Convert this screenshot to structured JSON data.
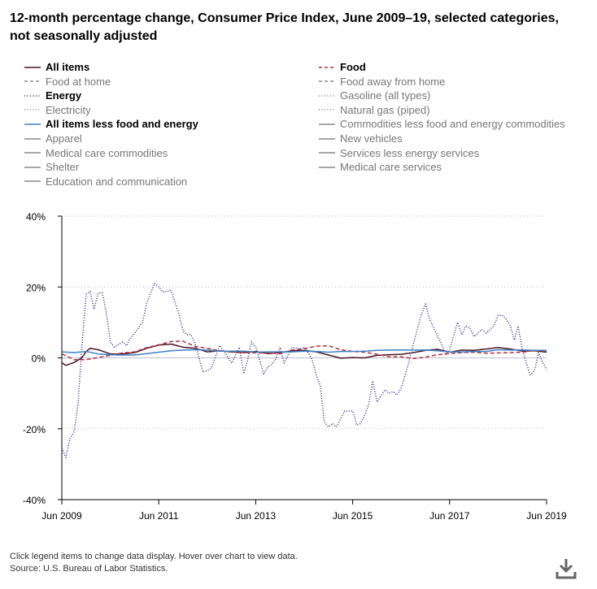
{
  "title": "12-month percentage change, Consumer Price Index, June 2009–19, selected categories, not seasonally adjusted",
  "legend": [
    {
      "label": "All items",
      "color": "#4a1427",
      "dash": "solid",
      "active": true
    },
    {
      "label": "Food",
      "color": "#b5323c",
      "dash": "dashed",
      "active": true
    },
    {
      "label": "Food at home",
      "color": "#888888",
      "dash": "dashed",
      "active": false
    },
    {
      "label": "Food away from home",
      "color": "#888888",
      "dash": "dashed",
      "active": false
    },
    {
      "label": "Energy",
      "color": "#2c2a8c",
      "dash": "dotted",
      "active": true
    },
    {
      "label": "Gasoline (all types)",
      "color": "#888888",
      "dash": "dotted",
      "active": false
    },
    {
      "label": "Electricity",
      "color": "#888888",
      "dash": "dotted",
      "active": false
    },
    {
      "label": "Natural gas (piped)",
      "color": "#888888",
      "dash": "dotted",
      "active": false
    },
    {
      "label": "All items less food and energy",
      "color": "#3f7fc4",
      "dash": "solid",
      "active": true
    },
    {
      "label": "Commodities less food and energy commodities",
      "color": "#888888",
      "dash": "solid",
      "active": false
    },
    {
      "label": "Apparel",
      "color": "#888888",
      "dash": "solid",
      "active": false
    },
    {
      "label": "New vehicles",
      "color": "#888888",
      "dash": "solid",
      "active": false
    },
    {
      "label": "Medical care commodities",
      "color": "#888888",
      "dash": "solid",
      "active": false
    },
    {
      "label": "Services less energy services",
      "color": "#888888",
      "dash": "solid",
      "active": false
    },
    {
      "label": "Shelter",
      "color": "#888888",
      "dash": "solid",
      "active": false
    },
    {
      "label": "Medical care services",
      "color": "#888888",
      "dash": "solid",
      "active": false
    },
    {
      "label": "Education and communication",
      "color": "#888888",
      "dash": "solid",
      "active": false
    }
  ],
  "chart_data": {
    "type": "line",
    "title": "12-month percentage change, Consumer Price Index, June 2009–19, selected categories, not seasonally adjusted",
    "xlabel": "",
    "ylabel": "",
    "ylim": [
      -40,
      40
    ],
    "xlim": [
      2009.4167,
      2019.4167
    ],
    "yticks": [
      {
        "value": 40,
        "label": "40%"
      },
      {
        "value": 20,
        "label": "20%"
      },
      {
        "value": 0,
        "label": "0%"
      },
      {
        "value": -20,
        "label": "-20%"
      },
      {
        "value": -40,
        "label": "-40%"
      }
    ],
    "xticks": [
      {
        "value": 2009.4167,
        "label": "Jun 2009"
      },
      {
        "value": 2011.4167,
        "label": "Jun 2011"
      },
      {
        "value": 2013.4167,
        "label": "Jun 2013"
      },
      {
        "value": 2015.4167,
        "label": "Jun 2015"
      },
      {
        "value": 2017.4167,
        "label": "Jun 2017"
      },
      {
        "value": 2019.4167,
        "label": "Jun 2019"
      }
    ],
    "grid": "horizontal-dotted",
    "series": [
      {
        "name": "All items",
        "color": "#4a1427",
        "dash": "solid",
        "points": [
          [
            2009.42,
            -1.4
          ],
          [
            2009.5,
            -2.1
          ],
          [
            2009.67,
            -1.3
          ],
          [
            2009.83,
            0
          ],
          [
            2009.92,
            1.8
          ],
          [
            2010.0,
            2.7
          ],
          [
            2010.17,
            2.3
          ],
          [
            2010.42,
            1.1
          ],
          [
            2010.67,
            1.1
          ],
          [
            2010.92,
            1.5
          ],
          [
            2011.17,
            2.7
          ],
          [
            2011.42,
            3.6
          ],
          [
            2011.67,
            3.9
          ],
          [
            2011.92,
            3.0
          ],
          [
            2012.17,
            2.7
          ],
          [
            2012.42,
            1.7
          ],
          [
            2012.67,
            2.0
          ],
          [
            2012.92,
            1.7
          ],
          [
            2013.17,
            1.5
          ],
          [
            2013.42,
            1.8
          ],
          [
            2013.67,
            1.2
          ],
          [
            2013.92,
            1.5
          ],
          [
            2014.17,
            2.0
          ],
          [
            2014.42,
            2.1
          ],
          [
            2014.67,
            1.7
          ],
          [
            2014.92,
            0.8
          ],
          [
            2015.17,
            -0.1
          ],
          [
            2015.42,
            0.1
          ],
          [
            2015.67,
            0.0
          ],
          [
            2015.92,
            0.7
          ],
          [
            2016.17,
            0.9
          ],
          [
            2016.42,
            1.0
          ],
          [
            2016.67,
            1.5
          ],
          [
            2016.92,
            2.1
          ],
          [
            2017.17,
            2.4
          ],
          [
            2017.42,
            1.6
          ],
          [
            2017.67,
            2.2
          ],
          [
            2017.92,
            2.1
          ],
          [
            2018.17,
            2.5
          ],
          [
            2018.42,
            2.9
          ],
          [
            2018.67,
            2.5
          ],
          [
            2018.92,
            1.9
          ],
          [
            2019.17,
            2.0
          ],
          [
            2019.42,
            1.6
          ]
        ]
      },
      {
        "name": "Food",
        "color": "#b5323c",
        "dash": "dashed",
        "points": [
          [
            2009.42,
            1.1
          ],
          [
            2009.67,
            -0.5
          ],
          [
            2009.92,
            -0.5
          ],
          [
            2010.17,
            0.1
          ],
          [
            2010.42,
            0.7
          ],
          [
            2010.67,
            1.4
          ],
          [
            2010.92,
            1.7
          ],
          [
            2011.17,
            2.9
          ],
          [
            2011.42,
            3.7
          ],
          [
            2011.67,
            4.6
          ],
          [
            2011.92,
            4.7
          ],
          [
            2012.17,
            3.2
          ],
          [
            2012.42,
            2.7
          ],
          [
            2012.67,
            2.0
          ],
          [
            2012.92,
            1.8
          ],
          [
            2013.17,
            1.5
          ],
          [
            2013.42,
            1.4
          ],
          [
            2013.67,
            1.4
          ],
          [
            2013.92,
            1.2
          ],
          [
            2014.17,
            2.2
          ],
          [
            2014.42,
            2.6
          ],
          [
            2014.67,
            3.3
          ],
          [
            2014.92,
            3.4
          ],
          [
            2015.17,
            2.3
          ],
          [
            2015.42,
            1.8
          ],
          [
            2015.67,
            1.6
          ],
          [
            2015.92,
            1.0
          ],
          [
            2016.17,
            0.3
          ],
          [
            2016.42,
            0.3
          ],
          [
            2016.67,
            -0.2
          ],
          [
            2016.92,
            0.2
          ],
          [
            2017.17,
            0.9
          ],
          [
            2017.42,
            1.2
          ],
          [
            2017.67,
            1.5
          ],
          [
            2017.92,
            1.6
          ],
          [
            2018.17,
            1.3
          ],
          [
            2018.42,
            1.4
          ],
          [
            2018.67,
            1.5
          ],
          [
            2018.92,
            1.6
          ],
          [
            2019.17,
            2.1
          ],
          [
            2019.42,
            1.8
          ]
        ]
      },
      {
        "name": "Energy",
        "color": "#2c2a8c",
        "dash": "dotted",
        "points": [
          [
            2009.42,
            -25.5
          ],
          [
            2009.5,
            -28.1
          ],
          [
            2009.58,
            -23.0
          ],
          [
            2009.67,
            -20.8
          ],
          [
            2009.75,
            -13.0
          ],
          [
            2009.83,
            3.0
          ],
          [
            2009.92,
            18.0
          ],
          [
            2010.0,
            18.8
          ],
          [
            2010.08,
            13.7
          ],
          [
            2010.17,
            18.3
          ],
          [
            2010.25,
            18.4
          ],
          [
            2010.33,
            13.0
          ],
          [
            2010.42,
            4.4
          ],
          [
            2010.5,
            3.0
          ],
          [
            2010.67,
            4.5
          ],
          [
            2010.75,
            3.4
          ],
          [
            2010.83,
            5.5
          ],
          [
            2010.92,
            7.0
          ],
          [
            2011.08,
            10.0
          ],
          [
            2011.17,
            15.5
          ],
          [
            2011.33,
            21.0
          ],
          [
            2011.42,
            20.0
          ],
          [
            2011.5,
            18.6
          ],
          [
            2011.67,
            19.0
          ],
          [
            2011.83,
            12.5
          ],
          [
            2011.92,
            7.5
          ],
          [
            2012.0,
            6.5
          ],
          [
            2012.08,
            6.6
          ],
          [
            2012.17,
            3.8
          ],
          [
            2012.33,
            -4.0
          ],
          [
            2012.42,
            -3.5
          ],
          [
            2012.5,
            -3.0
          ],
          [
            2012.58,
            0
          ],
          [
            2012.67,
            3.5
          ],
          [
            2012.83,
            0.5
          ],
          [
            2012.92,
            -1.5
          ],
          [
            2013.08,
            3.0
          ],
          [
            2013.17,
            -4.5
          ],
          [
            2013.25,
            -0.5
          ],
          [
            2013.33,
            4.5
          ],
          [
            2013.42,
            3.0
          ],
          [
            2013.58,
            -4.5
          ],
          [
            2013.67,
            -2.5
          ],
          [
            2013.75,
            -1.8
          ],
          [
            2013.83,
            -0.3
          ],
          [
            2013.92,
            3.0
          ],
          [
            2014.0,
            -1.5
          ],
          [
            2014.17,
            3.0
          ],
          [
            2014.33,
            2.5
          ],
          [
            2014.42,
            3.0
          ],
          [
            2014.5,
            1.5
          ],
          [
            2014.58,
            -0.5
          ],
          [
            2014.67,
            -5.0
          ],
          [
            2014.75,
            -8.0
          ],
          [
            2014.83,
            -18.0
          ],
          [
            2014.92,
            -19.5
          ],
          [
            2015.0,
            -18.5
          ],
          [
            2015.08,
            -19.5
          ],
          [
            2015.25,
            -15.0
          ],
          [
            2015.42,
            -15.0
          ],
          [
            2015.5,
            -19.0
          ],
          [
            2015.58,
            -18.5
          ],
          [
            2015.67,
            -16.0
          ],
          [
            2015.75,
            -13.0
          ],
          [
            2015.83,
            -6.5
          ],
          [
            2015.92,
            -12.5
          ],
          [
            2016.08,
            -9.0
          ],
          [
            2016.17,
            -10.0
          ],
          [
            2016.25,
            -9.5
          ],
          [
            2016.33,
            -10.5
          ],
          [
            2016.42,
            -8.5
          ],
          [
            2016.58,
            -1.0
          ],
          [
            2016.67,
            4.0
          ],
          [
            2016.83,
            12.0
          ],
          [
            2016.92,
            15.2
          ],
          [
            2017.0,
            11.0
          ],
          [
            2017.17,
            6.0
          ],
          [
            2017.25,
            4.0
          ],
          [
            2017.33,
            1.0
          ],
          [
            2017.42,
            2.5
          ],
          [
            2017.58,
            10.0
          ],
          [
            2017.67,
            6.5
          ],
          [
            2017.75,
            9.0
          ],
          [
            2017.83,
            8.5
          ],
          [
            2017.92,
            6.0
          ],
          [
            2018.08,
            8.0
          ],
          [
            2018.17,
            7.0
          ],
          [
            2018.33,
            9.0
          ],
          [
            2018.42,
            12.0
          ],
          [
            2018.5,
            12.0
          ],
          [
            2018.58,
            11.0
          ],
          [
            2018.67,
            9.0
          ],
          [
            2018.75,
            5.0
          ],
          [
            2018.83,
            9.0
          ],
          [
            2018.92,
            2.0
          ],
          [
            2019.08,
            -4.8
          ],
          [
            2019.17,
            -3.5
          ],
          [
            2019.25,
            1.5
          ],
          [
            2019.33,
            -1.0
          ],
          [
            2019.42,
            -3.4
          ]
        ]
      },
      {
        "name": "All items less food and energy",
        "color": "#3f7fc4",
        "dash": "solid",
        "points": [
          [
            2009.42,
            1.7
          ],
          [
            2009.67,
            1.5
          ],
          [
            2009.92,
            1.8
          ],
          [
            2010.17,
            1.1
          ],
          [
            2010.42,
            0.9
          ],
          [
            2010.67,
            0.8
          ],
          [
            2010.92,
            0.8
          ],
          [
            2011.17,
            1.2
          ],
          [
            2011.42,
            1.6
          ],
          [
            2011.67,
            2.0
          ],
          [
            2011.92,
            2.2
          ],
          [
            2012.17,
            2.3
          ],
          [
            2012.42,
            2.2
          ],
          [
            2012.67,
            1.9
          ],
          [
            2012.92,
            1.9
          ],
          [
            2013.17,
            1.9
          ],
          [
            2013.42,
            1.6
          ],
          [
            2013.67,
            1.7
          ],
          [
            2013.92,
            1.7
          ],
          [
            2014.17,
            1.7
          ],
          [
            2014.42,
            1.9
          ],
          [
            2014.67,
            1.8
          ],
          [
            2014.92,
            1.6
          ],
          [
            2015.17,
            1.8
          ],
          [
            2015.42,
            1.8
          ],
          [
            2015.67,
            1.9
          ],
          [
            2015.92,
            2.1
          ],
          [
            2016.17,
            2.2
          ],
          [
            2016.42,
            2.2
          ],
          [
            2016.67,
            2.2
          ],
          [
            2016.92,
            2.2
          ],
          [
            2017.17,
            2.0
          ],
          [
            2017.42,
            1.7
          ],
          [
            2017.67,
            1.7
          ],
          [
            2017.92,
            1.8
          ],
          [
            2018.17,
            1.8
          ],
          [
            2018.42,
            2.3
          ],
          [
            2018.67,
            2.2
          ],
          [
            2018.92,
            2.2
          ],
          [
            2019.17,
            2.1
          ],
          [
            2019.42,
            2.1
          ]
        ]
      }
    ]
  },
  "footnote": {
    "line1": "Click legend items to change data display. Hover over chart to view data.",
    "line2": "Source: U.S. Bureau of Labor Statistics."
  },
  "download_icon": "download-icon"
}
